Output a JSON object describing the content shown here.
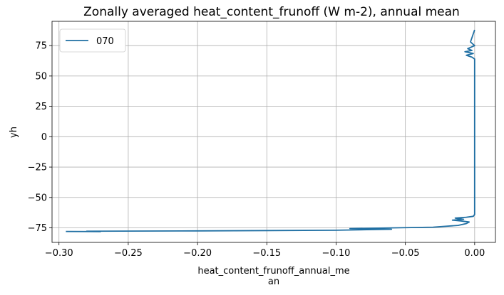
{
  "chart_data": {
    "type": "line",
    "title": "Zonally averaged heat_content_frunoff (W m-2), annual mean",
    "xlabel_lines": [
      "heat_content_frunoff_annual_me",
      "an"
    ],
    "ylabel": "yh",
    "xlim": [
      -0.305,
      0.015
    ],
    "ylim": [
      -87,
      95
    ],
    "xticks": [
      {
        "value": -0.3,
        "label": "−0.30"
      },
      {
        "value": -0.25,
        "label": "−0.25"
      },
      {
        "value": -0.2,
        "label": "−0.20"
      },
      {
        "value": -0.15,
        "label": "−0.15"
      },
      {
        "value": -0.1,
        "label": "−0.10"
      },
      {
        "value": -0.05,
        "label": "−0.05"
      },
      {
        "value": 0.0,
        "label": "0.00"
      }
    ],
    "yticks": [
      {
        "value": 75,
        "label": "75"
      },
      {
        "value": 50,
        "label": "50"
      },
      {
        "value": 25,
        "label": "25"
      },
      {
        "value": 0,
        "label": "0"
      },
      {
        "value": -25,
        "label": "−25"
      },
      {
        "value": -50,
        "label": "−50"
      },
      {
        "value": -75,
        "label": "−75"
      }
    ],
    "grid": true,
    "legend": {
      "placement": "top-left"
    },
    "series": [
      {
        "name": "070",
        "color": "#1f6fa3",
        "x": [
          -0.295,
          -0.27,
          -0.28,
          -0.2,
          -0.1,
          -0.06,
          -0.09,
          -0.03,
          -0.012,
          -0.006,
          -0.004,
          -0.01,
          -0.016,
          -0.008,
          -0.014,
          -0.006,
          -0.001,
          0.0,
          0.0,
          0.0,
          0.0,
          0.0,
          0.0,
          0.0,
          -0.002,
          -0.006,
          -0.001,
          -0.007,
          -0.002,
          -0.005,
          0.0,
          -0.003,
          0.0
        ],
        "y": [
          -78.0,
          -78.1,
          -77.8,
          -77.5,
          -77.0,
          -76.2,
          -75.6,
          -74.5,
          -73.0,
          -71.5,
          -70.2,
          -69.3,
          -68.7,
          -68.0,
          -67.0,
          -66.3,
          -65.5,
          -64.0,
          -40.0,
          0.0,
          30.0,
          55.0,
          62.0,
          64.0,
          65.5,
          67.0,
          68.5,
          70.0,
          71.0,
          72.5,
          75.0,
          78.0,
          88.0
        ]
      }
    ]
  }
}
